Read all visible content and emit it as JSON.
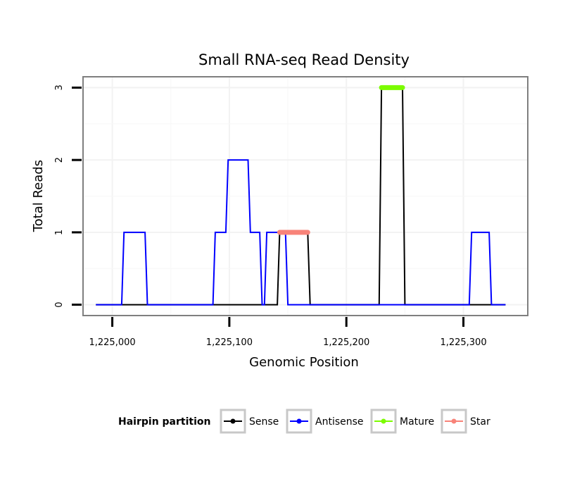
{
  "chart_data": {
    "type": "line",
    "title": "Small RNA-seq Read Density",
    "xlabel": "Genomic Position",
    "ylabel": "Total Reads",
    "xlim": [
      1224975,
      1225355
    ],
    "ylim": [
      -0.15,
      3.15
    ],
    "x_ticks": [
      1225000,
      1225100,
      1225200,
      1225300
    ],
    "x_tick_labels": [
      "1,225,000",
      "1,225,100",
      "1,225,200",
      "1,225,300"
    ],
    "y_ticks": [
      0,
      1,
      2,
      3
    ],
    "y_tick_labels": [
      "0",
      "1",
      "2",
      "3"
    ],
    "legend": {
      "title": "Hairpin partition",
      "position": "bottom",
      "entries": [
        {
          "name": "Sense",
          "color": "#000000"
        },
        {
          "name": "Antisense",
          "color": "#0000ff"
        },
        {
          "name": "Mature",
          "color": "#7cfc00"
        },
        {
          "name": "Star",
          "color": "#f88379"
        }
      ]
    },
    "series": [
      {
        "name": "Sense",
        "color": "#000000",
        "x": [
          1224986,
          1225141,
          1225143,
          1225167,
          1225169,
          1225228,
          1225230,
          1225248,
          1225250,
          1225336
        ],
        "y": [
          0,
          0,
          1,
          1,
          0,
          0,
          3,
          3,
          0,
          0
        ]
      },
      {
        "name": "Antisense",
        "color": "#0000ff",
        "x": [
          1224986,
          1225008,
          1225010,
          1225028,
          1225030,
          1225086,
          1225088,
          1225097,
          1225099,
          1225116,
          1225118,
          1225126,
          1225128,
          1225130,
          1225132,
          1225148,
          1225150,
          1225166,
          1225168,
          1225305,
          1225307,
          1225322,
          1225324,
          1225336
        ],
        "y": [
          0,
          0,
          1,
          1,
          0,
          0,
          1,
          1,
          2,
          2,
          1,
          1,
          0,
          0,
          1,
          1,
          0,
          0,
          0,
          0,
          1,
          1,
          0,
          0
        ]
      },
      {
        "name": "Mature",
        "color": "#7cfc00",
        "x": [
          1225230,
          1225248
        ],
        "y": [
          3,
          3
        ]
      },
      {
        "name": "Star",
        "color": "#f88379",
        "x": [
          1225143,
          1225167
        ],
        "y": [
          1,
          1
        ]
      }
    ]
  }
}
